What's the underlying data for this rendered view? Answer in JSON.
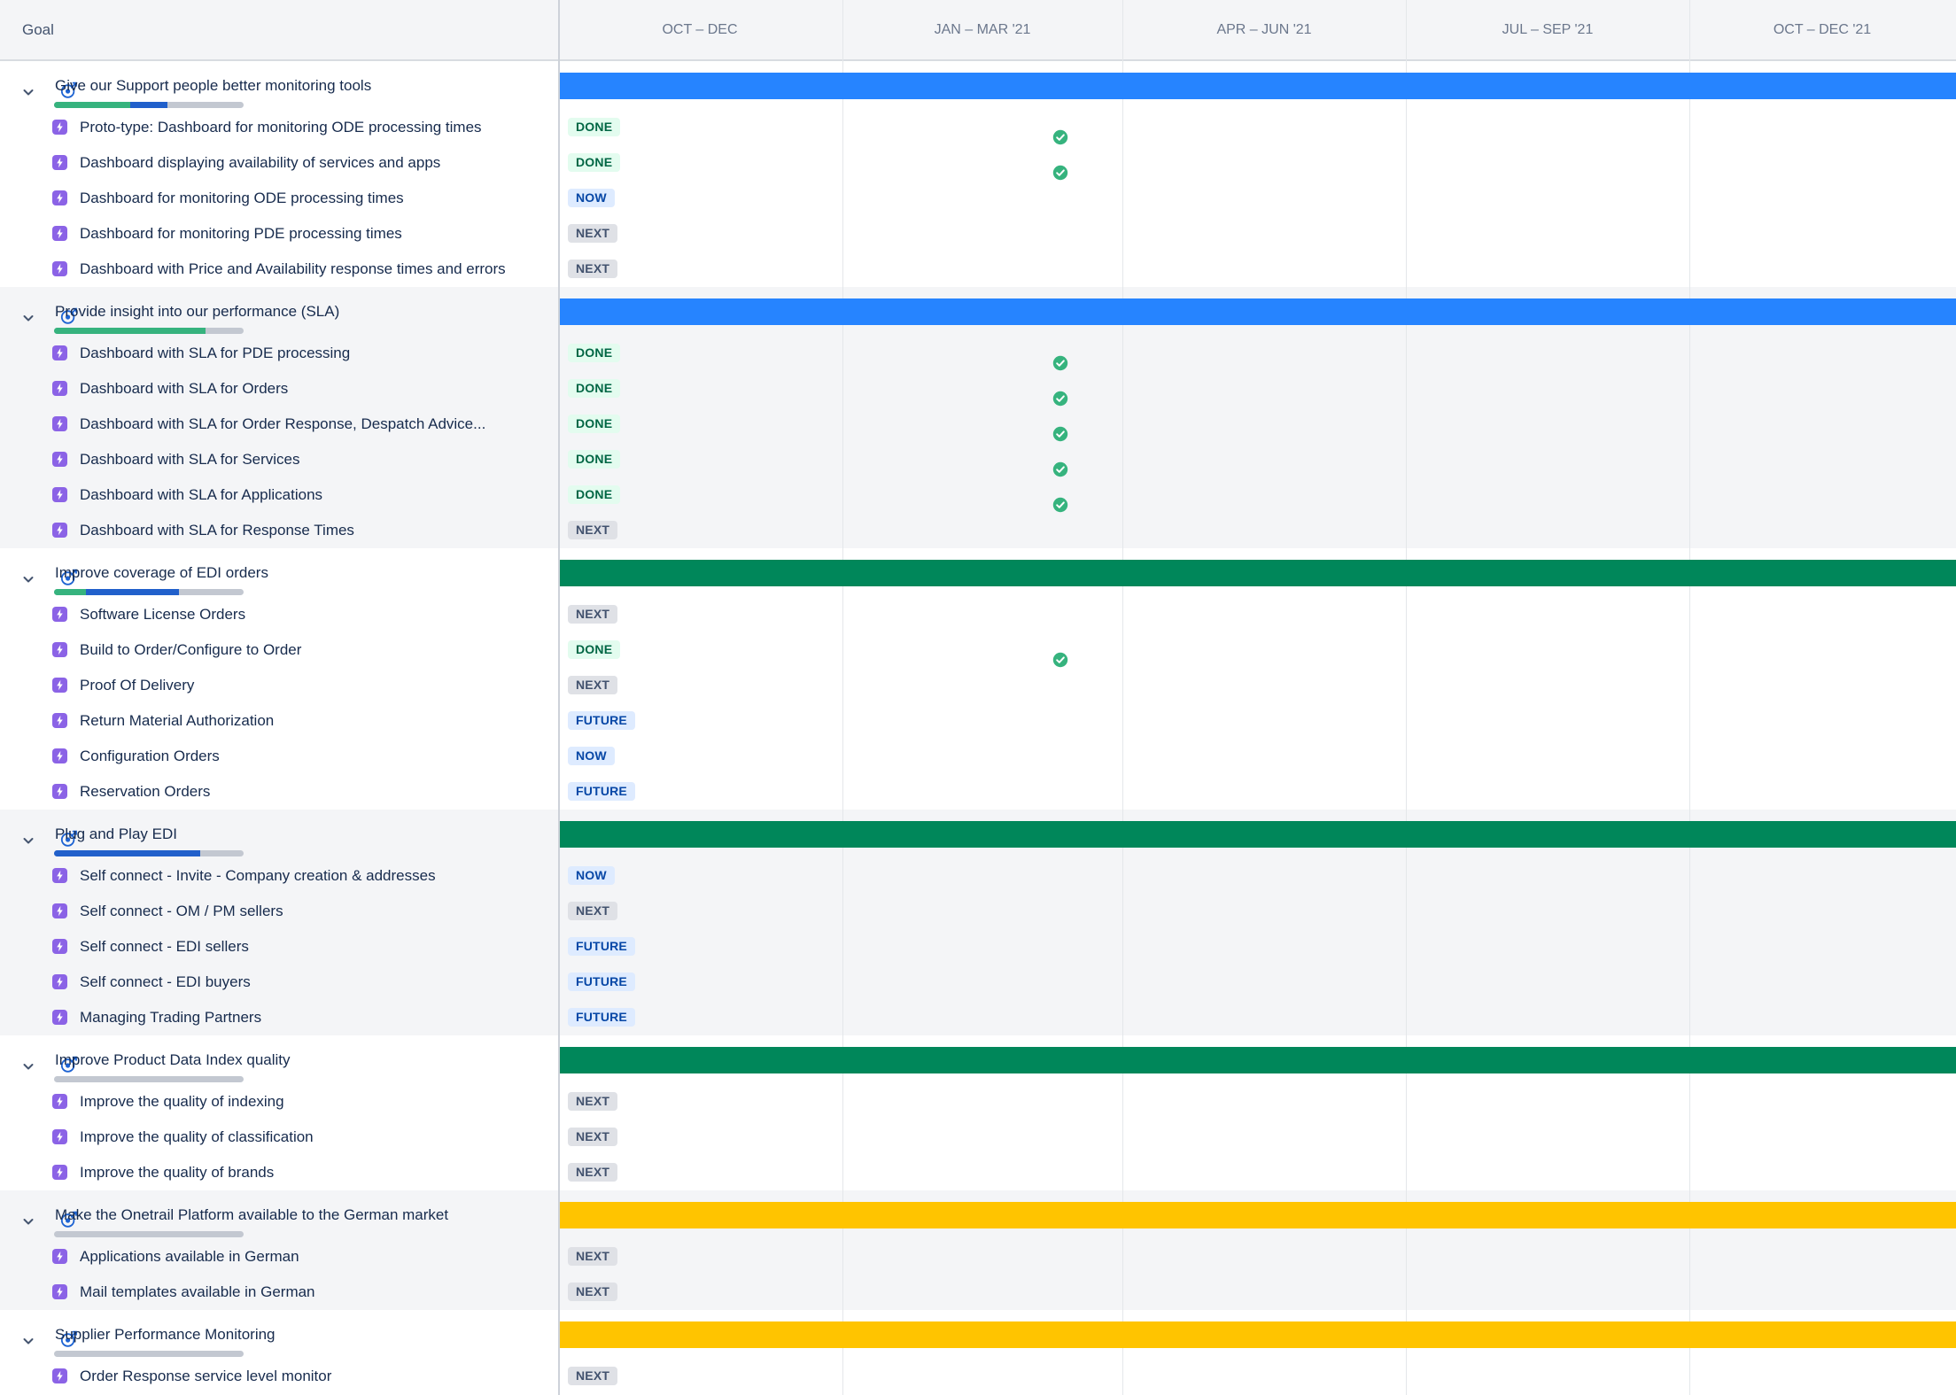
{
  "header": {
    "goal_label": "Goal",
    "quarters": [
      "OCT – DEC",
      "JAN – MAR '21",
      "APR – JUN '21",
      "JUL – SEP '21",
      "OCT – DEC '21"
    ]
  },
  "colors": {
    "bar_blue": "#2684FF",
    "bar_green": "#00875A",
    "bar_yellow": "#FFC400",
    "progress_green": "#36B37E",
    "progress_blue": "#2160CB",
    "progress_track": "#C3C8D1",
    "item_icon_purple": "#8B63E6",
    "goal_icon_blue": "#1D63D2",
    "check_green": "#36B37E",
    "band_gray": "#F4F5F7"
  },
  "statuses": {
    "DONE": {
      "label": "DONE",
      "bg": "#E3FCEF",
      "fg": "#006644"
    },
    "NOW": {
      "label": "NOW",
      "bg": "#DEEBFF",
      "fg": "#0747A6"
    },
    "NEXT": {
      "label": "NEXT",
      "bg": "#DFE1E6",
      "fg": "#42526E"
    },
    "FUTURE": {
      "label": "FUTURE",
      "bg": "#DEEBFF",
      "fg": "#0747A6"
    }
  },
  "goals": [
    {
      "title": "Give our Support people better monitoring tools",
      "bar_color": "blue",
      "progress": {
        "green_pct": 40,
        "blue_pct": 20
      },
      "items": [
        {
          "title": "Proto-type: Dashboard for monitoring ODE processing times",
          "status": "DONE",
          "check": true
        },
        {
          "title": "Dashboard displaying availability of services and apps",
          "status": "DONE",
          "check": true
        },
        {
          "title": "Dashboard for monitoring ODE processing times",
          "status": "NOW",
          "check": false
        },
        {
          "title": "Dashboard for monitoring PDE processing times",
          "status": "NEXT",
          "check": false
        },
        {
          "title": "Dashboard with Price and Availability response times and errors",
          "status": "NEXT",
          "check": false
        }
      ]
    },
    {
      "title": "Provide insight into our performance (SLA)",
      "bar_color": "blue",
      "progress": {
        "green_pct": 80,
        "blue_pct": 0
      },
      "items": [
        {
          "title": "Dashboard with SLA for PDE processing",
          "status": "DONE",
          "check": true
        },
        {
          "title": "Dashboard with SLA for Orders",
          "status": "DONE",
          "check": true
        },
        {
          "title": "Dashboard with SLA for Order Response, Despatch Advice...",
          "status": "DONE",
          "check": true
        },
        {
          "title": "Dashboard with SLA for Services",
          "status": "DONE",
          "check": true
        },
        {
          "title": "Dashboard with SLA for Applications",
          "status": "DONE",
          "check": true
        },
        {
          "title": "Dashboard with SLA for Response Times",
          "status": "NEXT",
          "check": false
        }
      ]
    },
    {
      "title": "Improve coverage of EDI orders",
      "bar_color": "green",
      "progress": {
        "green_pct": 17,
        "blue_pct": 49
      },
      "items": [
        {
          "title": "Software License Orders",
          "status": "NEXT",
          "check": false
        },
        {
          "title": "Build to Order/Configure to Order",
          "status": "DONE",
          "check": true
        },
        {
          "title": "Proof Of Delivery",
          "status": "NEXT",
          "check": false
        },
        {
          "title": "Return Material Authorization",
          "status": "FUTURE",
          "check": false
        },
        {
          "title": "Configuration Orders",
          "status": "NOW",
          "check": false
        },
        {
          "title": "Reservation Orders",
          "status": "FUTURE",
          "check": false
        }
      ]
    },
    {
      "title": "Plug and Play EDI",
      "bar_color": "green",
      "progress": {
        "green_pct": 0,
        "blue_pct": 77
      },
      "items": [
        {
          "title": "Self connect - Invite - Company creation & addresses",
          "status": "NOW",
          "check": false
        },
        {
          "title": "Self connect - OM / PM sellers",
          "status": "NEXT",
          "check": false
        },
        {
          "title": "Self connect - EDI sellers",
          "status": "FUTURE",
          "check": false
        },
        {
          "title": "Self connect - EDI buyers",
          "status": "FUTURE",
          "check": false
        },
        {
          "title": "Managing Trading Partners",
          "status": "FUTURE",
          "check": false
        }
      ]
    },
    {
      "title": "Improve Product Data Index quality",
      "bar_color": "green",
      "progress": {
        "green_pct": 0,
        "blue_pct": 0
      },
      "items": [
        {
          "title": "Improve the quality of indexing",
          "status": "NEXT",
          "check": false
        },
        {
          "title": "Improve the quality of classification",
          "status": "NEXT",
          "check": false
        },
        {
          "title": "Improve the quality of brands",
          "status": "NEXT",
          "check": false
        }
      ]
    },
    {
      "title": "Make the Onetrail Platform available to the German market",
      "bar_color": "yellow",
      "progress": {
        "green_pct": 0,
        "blue_pct": 0
      },
      "items": [
        {
          "title": "Applications available in German",
          "status": "NEXT",
          "check": false
        },
        {
          "title": "Mail templates available in German",
          "status": "NEXT",
          "check": false
        }
      ]
    },
    {
      "title": "Supplier Performance Monitoring",
      "bar_color": "yellow",
      "progress": {
        "green_pct": 0,
        "blue_pct": 0
      },
      "items": [
        {
          "title": "Order Response service level monitor",
          "status": "NEXT",
          "check": false
        }
      ]
    }
  ]
}
